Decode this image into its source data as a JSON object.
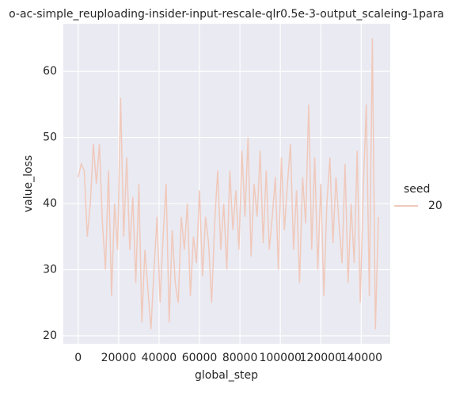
{
  "chart_data": {
    "type": "line",
    "title": "o-ac-simple_reuploading-insider-input-rescale-qlr0.5e-3-output_scaleing-1para",
    "x_label": "global_step",
    "y_label": "value_loss",
    "legend_title": "seed",
    "legend_position": "right",
    "x": [
      0,
      1500,
      3000,
      4500,
      6000,
      7500,
      9000,
      10500,
      12000,
      13500,
      15000,
      16500,
      18000,
      19500,
      21000,
      22500,
      24000,
      25500,
      27000,
      28500,
      30000,
      31500,
      33000,
      34500,
      36000,
      37500,
      39000,
      40500,
      42000,
      43500,
      45000,
      46500,
      48000,
      49500,
      51000,
      52500,
      54000,
      55500,
      57000,
      58500,
      60000,
      61500,
      63000,
      64500,
      66000,
      67500,
      69000,
      70500,
      72000,
      73500,
      75000,
      76500,
      78000,
      79500,
      81000,
      82500,
      84000,
      85500,
      87000,
      88500,
      90000,
      91500,
      93000,
      94500,
      96000,
      97500,
      99000,
      100500,
      102000,
      103500,
      105000,
      106500,
      108000,
      109500,
      111000,
      112500,
      114000,
      115500,
      117000,
      118500,
      120000,
      121500,
      123000,
      124500,
      126000,
      127500,
      129000,
      130500,
      132000,
      133500,
      135000,
      136500,
      138000,
      139500,
      141000,
      142500,
      144000,
      145500,
      147000,
      148500
    ],
    "series": [
      {
        "name": "20",
        "color": "#f0c9bb",
        "values": [
          44,
          46,
          45,
          35,
          40,
          49,
          43,
          49,
          37,
          30,
          45,
          26,
          40,
          33,
          56,
          35,
          47,
          33,
          41,
          28,
          43,
          22,
          33,
          27,
          21,
          30,
          38,
          25,
          35,
          43,
          22,
          36,
          28,
          25,
          38,
          33,
          40,
          26,
          35,
          31,
          42,
          29,
          38,
          34,
          25,
          37,
          45,
          33,
          40,
          30,
          45,
          36,
          42,
          33,
          48,
          38,
          50,
          32,
          43,
          38,
          48,
          34,
          45,
          33,
          38,
          44,
          30,
          47,
          36,
          43,
          49,
          33,
          42,
          28,
          44,
          37,
          55,
          33,
          47,
          30,
          43,
          26,
          40,
          47,
          34,
          44,
          37,
          31,
          46,
          28,
          40,
          31,
          48,
          25,
          42,
          55,
          26,
          65,
          21,
          38
        ]
      }
    ],
    "xlim": [
      -7350,
      154350
    ],
    "ylim": [
      18.8,
      67.2
    ],
    "xticks": [
      0,
      20000,
      40000,
      60000,
      80000,
      100000,
      120000,
      140000
    ],
    "yticks": [
      20,
      30,
      40,
      50,
      60
    ],
    "grid": true
  }
}
